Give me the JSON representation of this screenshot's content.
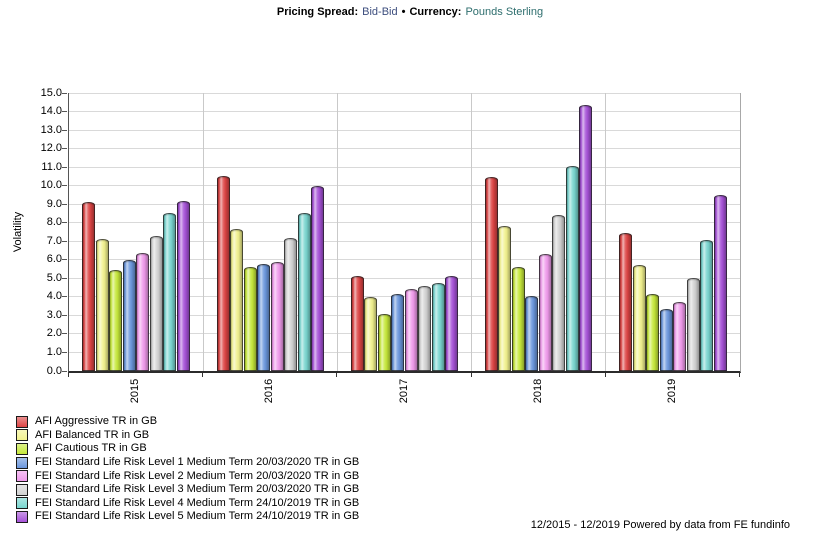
{
  "header": {
    "label_pricing": "Pricing Spread:",
    "value_pricing": "Bid-Bid",
    "separator": "•",
    "label_currency": "Currency:",
    "value_currency": "Pounds Sterling",
    "value_pricing_color": "#3d4e7e",
    "value_currency_color": "#2e6e6e"
  },
  "footer": {
    "text": "12/2015 - 12/2019 Powered by data from FE fundinfo"
  },
  "chart_data": {
    "type": "bar",
    "title": "",
    "xlabel": "",
    "ylabel": "Volatility",
    "ylim": [
      0,
      15
    ],
    "ytick_step": 1.0,
    "grid": true,
    "legend_position": "bottom-left",
    "bar_style": "cylinder",
    "categories": [
      "2015",
      "2016",
      "2017",
      "2018",
      "2019"
    ],
    "series": [
      {
        "name": "AFI Aggressive TR in GB",
        "color": "#dd4444",
        "values": [
          9.1,
          10.5,
          5.1,
          10.45,
          7.45
        ]
      },
      {
        "name": "AFI Balanced TR in GB",
        "color": "#f2f28e",
        "values": [
          7.1,
          7.65,
          4.0,
          7.8,
          5.7
        ]
      },
      {
        "name": "AFI Cautious TR in GB",
        "color": "#c6e83a",
        "values": [
          5.45,
          5.6,
          3.1,
          5.6,
          4.15
        ]
      },
      {
        "name": "FEI Standard Life Risk Level 1 Medium Term 20/03/2020 TR in GB",
        "color": "#6b97dd",
        "values": [
          6.0,
          5.75,
          4.15,
          4.05,
          3.35
        ]
      },
      {
        "name": "FEI Standard Life Risk Level 2 Medium Term 20/03/2020 TR in GB",
        "color": "#f09aec",
        "values": [
          6.35,
          5.9,
          4.4,
          6.3,
          3.75
        ]
      },
      {
        "name": "FEI Standard Life Risk Level 3 Medium Term 20/03/2020 TR in GB",
        "color": "#d2d2d2",
        "values": [
          7.3,
          7.2,
          4.6,
          8.4,
          5.0
        ]
      },
      {
        "name": "FEI Standard Life Risk Level 4 Medium Term 24/10/2019 TR in GB",
        "color": "#79d6d0",
        "values": [
          8.55,
          8.55,
          4.75,
          11.05,
          7.05
        ]
      },
      {
        "name": "FEI Standard Life Risk Level 5 Medium Term 24/10/2019 TR in GB",
        "color": "#a652d8",
        "values": [
          9.2,
          10.0,
          5.1,
          14.35,
          9.5
        ]
      }
    ]
  }
}
